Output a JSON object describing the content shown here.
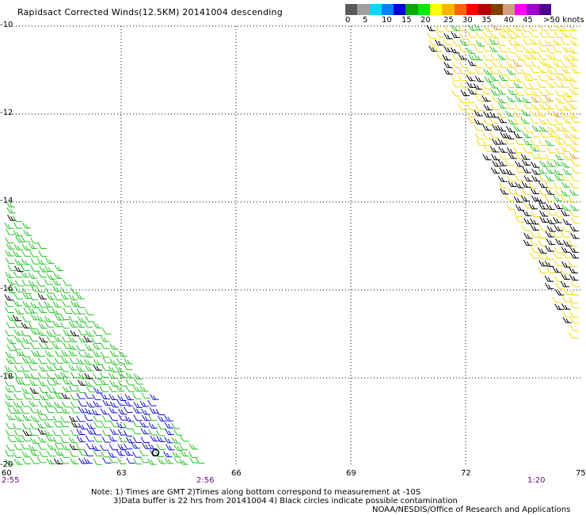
{
  "title": "Rapidsact Corrected Winds(12.5KM) 20141004 descending",
  "color_scale": {
    "swatches": [
      "#5a5a5a",
      "#a0a0a0",
      "#00d8ff",
      "#0080ff",
      "#0000d8",
      "#00a800",
      "#00e800",
      "#ffff00",
      "#ffb400",
      "#ff6400",
      "#ff0000",
      "#b40000",
      "#804000",
      "#d0a080",
      "#ff00ff",
      "#a000d0",
      "#500090"
    ],
    "labels": [
      "0",
      "5",
      "10",
      "15",
      "20",
      "25",
      "30",
      "35",
      "40",
      "45",
      ">50 knots"
    ]
  },
  "map": {
    "lon_ticks": [
      "60",
      "63",
      "66",
      "69",
      "72",
      "75"
    ],
    "lat_ticks": [
      "-10",
      "-12",
      "-14",
      "-16",
      "-18",
      "-20"
    ],
    "lon_range": [
      60,
      75
    ],
    "lat_range": [
      -20,
      -10
    ],
    "grid": true,
    "times": [
      "2:55",
      "2:56",
      "1:20"
    ],
    "swaths": [
      {
        "name": "west",
        "polygon": [
          [
            60,
            -14
          ],
          [
            60,
            -20
          ],
          [
            65.2,
            -20
          ]
        ],
        "dominant_speeds_knots": "15-25",
        "colors": [
          "green",
          "blue",
          "black"
        ]
      },
      {
        "name": "east",
        "polygon": [
          [
            70.8,
            -10
          ],
          [
            75,
            -10
          ],
          [
            75,
            -17.5
          ]
        ],
        "dominant_speeds_knots": "20-35",
        "colors": [
          "yellow",
          "green",
          "black",
          "orange"
        ]
      }
    ]
  },
  "notes": {
    "line1": "Note: 1) Times are GMT 2)Times along bottom correspond to measurement at -10S",
    "line2": "3)Data buffer is 22 hrs from 20141004 4) Black circles indicate possible contamination"
  },
  "credit": "NOAA/NESDIS/Office of Research and Applications"
}
